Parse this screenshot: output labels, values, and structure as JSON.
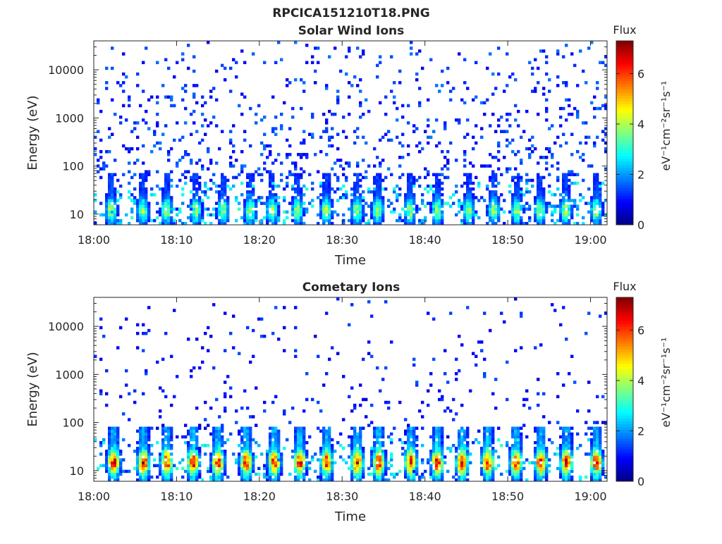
{
  "figure": {
    "title": "RPCICA151210T18.PNG"
  },
  "colors": {
    "colormap": "jet",
    "axis": "#262626",
    "background": "#ffffff"
  },
  "chart_data": [
    {
      "type": "heatmap",
      "title": "Solar Wind Ions",
      "xlabel": "Time",
      "ylabel": "Energy (eV)",
      "x_ticks": [
        "18:00",
        "18:10",
        "18:20",
        "18:30",
        "18:40",
        "18:50",
        "19:00"
      ],
      "y_ticks": [
        "10",
        "100",
        "1000",
        "10000"
      ],
      "y_scale": "log",
      "xlim": [
        "18:00",
        "19:02"
      ],
      "ylim": [
        6,
        40000
      ],
      "colorbar": {
        "label": "Flux",
        "units": "eV⁻¹cm⁻²sr⁻¹s⁻¹",
        "ticks": [
          "0",
          "2",
          "4",
          "6"
        ],
        "range": [
          0,
          7.3
        ]
      },
      "pattern": {
        "peak_energy_eV": 12,
        "peak_flux": 4.0,
        "background_flux": 1.2,
        "background_density": 0.13,
        "low_energy_density": 0.55,
        "bursts_minutes": [
          2.1,
          5.9,
          8.8,
          12.3,
          15.6,
          18.9,
          21.5,
          24.6,
          28.1,
          31.8,
          34.3,
          38.2,
          41.5,
          45.3,
          48.3,
          51.1,
          53.9,
          57.0,
          60.7
        ]
      }
    },
    {
      "type": "heatmap",
      "title": "Cometary Ions",
      "xlabel": "Time",
      "ylabel": "Energy (eV)",
      "x_ticks": [
        "18:00",
        "18:10",
        "18:20",
        "18:30",
        "18:40",
        "18:50",
        "19:00"
      ],
      "y_ticks": [
        "10",
        "100",
        "1000",
        "10000"
      ],
      "y_scale": "log",
      "xlim": [
        "18:00",
        "19:02"
      ],
      "ylim": [
        6,
        40000
      ],
      "colorbar": {
        "label": "Flux",
        "units": "eV⁻¹cm⁻²sr⁻¹s⁻¹",
        "ticks": [
          "0",
          "2",
          "4",
          "6"
        ],
        "range": [
          0,
          7.3
        ]
      },
      "pattern": {
        "peak_energy_eV": 15,
        "peak_flux": 6.4,
        "background_flux": 1.0,
        "background_density": 0.06,
        "low_energy_density": 0.35,
        "bursts_minutes": [
          2.4,
          6.0,
          8.8,
          12.0,
          15.0,
          18.4,
          21.8,
          24.9,
          28.1,
          31.8,
          34.4,
          38.3,
          41.5,
          44.5,
          47.6,
          51.0,
          54.0,
          57.1,
          60.7
        ]
      }
    }
  ]
}
